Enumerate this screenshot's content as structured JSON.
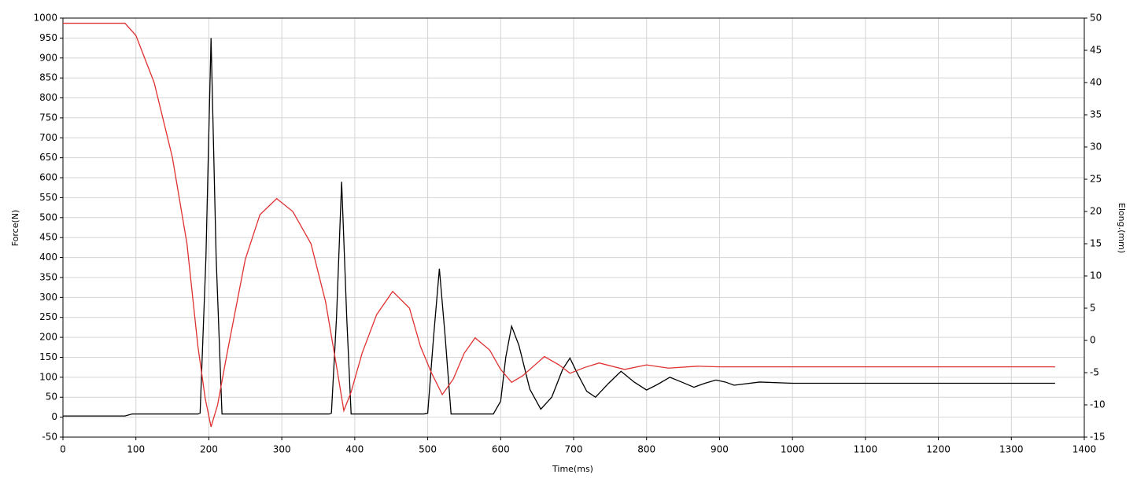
{
  "chart_data": {
    "type": "line",
    "xlabel": "Time(ms)",
    "ylabel": "Force(N)",
    "y2label": "Elong.(mm)",
    "xlim": [
      0,
      1400
    ],
    "xticks": [
      0,
      100,
      200,
      300,
      400,
      500,
      600,
      700,
      800,
      900,
      1000,
      1100,
      1200,
      1300,
      1400
    ],
    "ylim": [
      -50,
      1000
    ],
    "yticks": [
      -50,
      0,
      50,
      100,
      150,
      200,
      250,
      300,
      350,
      400,
      450,
      500,
      550,
      600,
      650,
      700,
      750,
      800,
      850,
      900,
      950,
      1000
    ],
    "y2lim": [
      -15,
      50
    ],
    "y2ticks": [
      -15,
      -10,
      -5,
      0,
      5,
      10,
      15,
      20,
      25,
      30,
      35,
      40,
      45,
      50
    ],
    "grid": true,
    "series": [
      {
        "color": "#000000",
        "axis": "y",
        "x": [
          0,
          85,
          95,
          185,
          188,
          196,
          203,
          210,
          218,
          230,
          365,
          368,
          375,
          382,
          389,
          395,
          410,
          495,
          500,
          508,
          516,
          524,
          532,
          545,
          590,
          600,
          607,
          615,
          625,
          640,
          655,
          670,
          685,
          695,
          705,
          718,
          730,
          748,
          765,
          783,
          800,
          815,
          832,
          848,
          865,
          880,
          895,
          908,
          920,
          955,
          1000,
          1100,
          1200,
          1300,
          1360
        ],
        "values": [
          3,
          3,
          8,
          8,
          10,
          400,
          950,
          400,
          8,
          8,
          8,
          10,
          250,
          590,
          250,
          8,
          8,
          8,
          10,
          200,
          372,
          200,
          8,
          8,
          8,
          40,
          150,
          228,
          180,
          70,
          20,
          50,
          120,
          148,
          110,
          65,
          50,
          85,
          115,
          88,
          68,
          82,
          100,
          88,
          75,
          85,
          93,
          88,
          80,
          88,
          85,
          85,
          85,
          85,
          85
        ]
      },
      {
        "color": "#e03030",
        "axis": "y2",
        "x": [
          0,
          85,
          100,
          125,
          150,
          170,
          185,
          195,
          203,
          212,
          225,
          250,
          270,
          293,
          315,
          340,
          360,
          375,
          385,
          395,
          410,
          430,
          452,
          475,
          490,
          505,
          520,
          535,
          550,
          565,
          585,
          600,
          615,
          630,
          660,
          680,
          695,
          715,
          735,
          770,
          800,
          830,
          870,
          900,
          1000,
          1100,
          1200,
          1300,
          1360
        ],
        "values": [
          49.2,
          49.2,
          47.3,
          40,
          28.4,
          15,
          -0.9,
          -9,
          -13.4,
          -10,
          -2,
          12.6,
          19.5,
          22,
          20,
          15,
          6,
          -4,
          -10.9,
          -8,
          -2,
          4,
          7.6,
          5,
          -0.9,
          -5,
          -8.4,
          -6,
          -2,
          0.4,
          -1.5,
          -4.5,
          -6.5,
          -5.5,
          -2.5,
          -3.8,
          -5.1,
          -4.2,
          -3.5,
          -4.5,
          -3.8,
          -4.3,
          -4,
          -4.1,
          -4.1,
          -4.1,
          -4.1,
          -4.1,
          -4.1
        ]
      }
    ]
  }
}
